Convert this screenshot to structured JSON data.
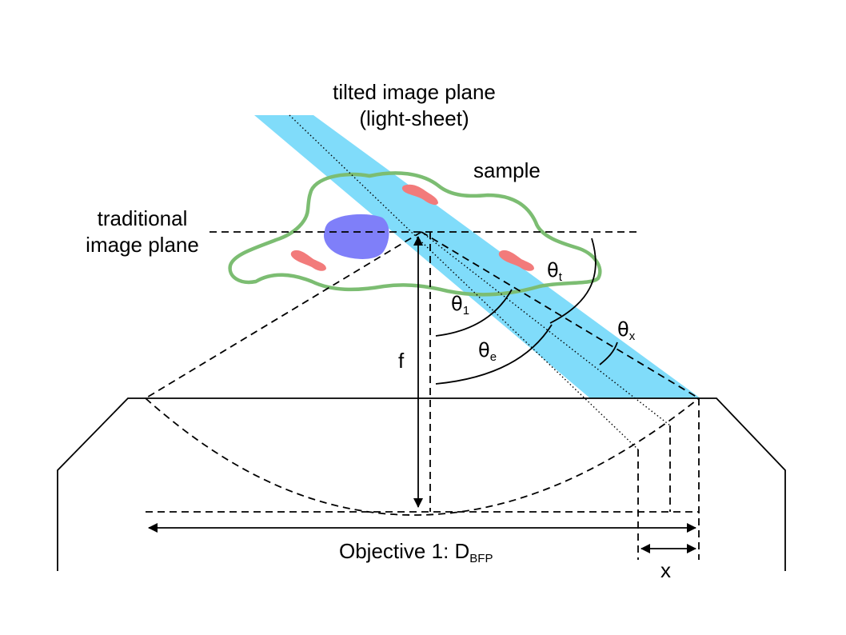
{
  "labels": {
    "tilted_line1": "tilted image plane",
    "tilted_line2": "(light-sheet)",
    "sample": "sample",
    "traditional_line1": "traditional",
    "traditional_line2": "image plane",
    "f": "f",
    "objective_prefix": "Objective 1: D",
    "objective_sub": "BFP",
    "x": "x"
  },
  "angles": {
    "theta_symbol": "θ",
    "theta_1_sub": "1",
    "theta_e_sub": "e",
    "theta_t_sub": "t",
    "theta_x_sub": "x"
  },
  "colors": {
    "light_sheet": "#80dcfa",
    "sample_outline": "#7cbd72",
    "nucleus": "#7f7ff9",
    "organelles": "#f27b7b",
    "lines": "#000000"
  }
}
